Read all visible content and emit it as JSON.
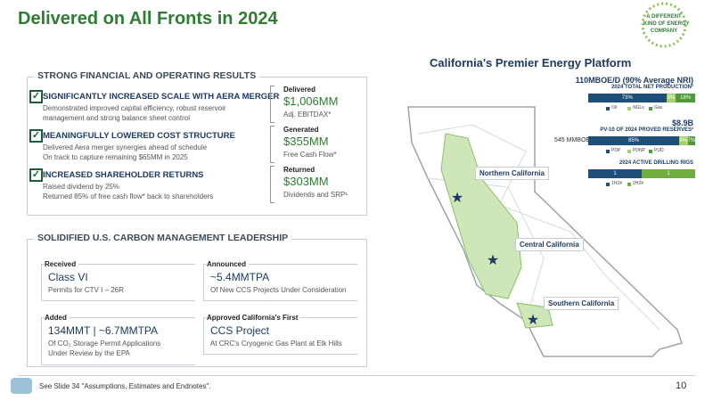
{
  "header": {
    "title": "Delivered on All Fronts in 2024",
    "logo": [
      "A DIFFERENT",
      "KIND OF ENERGY",
      "COMPANY"
    ]
  },
  "financial": {
    "heading": "STRONG FINANCIAL AND OPERATING RESULTS",
    "items": [
      {
        "title": "SIGNIFICANTLY INCREASED SCALE WITH AERA MERGER",
        "lines": [
          "Demonstrated improved capital efficiency, robust reservoir",
          "management and strong balance sheet control"
        ]
      },
      {
        "title": "MEANINGFULLY LOWERED COST STRUCTURE",
        "lines": [
          "Delivered Aera merger synergies ahead of schedule",
          "On track to capture remaining $65MM in 2025"
        ]
      },
      {
        "title": "INCREASED SHAREHOLDER RETURNS",
        "lines": [
          "Raised dividend by 25%",
          "Returned 85% of free cash flow* back to shareholders"
        ]
      }
    ],
    "metrics": [
      {
        "label": "Delivered",
        "value": "$1,006MM",
        "note": "Adj. EBITDAX*"
      },
      {
        "label": "Generated",
        "value": "$355MM",
        "note": "Free Cash Flow*"
      },
      {
        "label": "Returned",
        "value": "$303MM",
        "note": "Dividends and SRP¹"
      }
    ]
  },
  "carbon": {
    "heading": "SOLIDIFIED U.S. CARBON MANAGEMENT LEADERSHIP",
    "cards": [
      {
        "label": "Received",
        "value": "Class VI",
        "lines": [
          "Permits for CTV I – 26R"
        ]
      },
      {
        "label": "Announced",
        "value": "~5.4MMTPA",
        "lines": [
          "Of New CCS Projects Under Consideration"
        ]
      },
      {
        "label": "Added",
        "value": "134MMT | ~6.7MMTPA",
        "lines": [
          "Of CO₂ Storage Permit Applications",
          "Under Review by the EPA"
        ]
      },
      {
        "label": "Approved California's First",
        "value": "CCS Project",
        "lines": [
          "At CRC's Cryogenic Gas Plant at Elk Hills"
        ]
      }
    ]
  },
  "platform": {
    "title": "California's Premier Energy Platform",
    "charts": [
      {
        "headline": "110MBOE/D (90% Average NRI)",
        "caption": "2024 TOTAL NET PRODUCTION³",
        "segments": [
          {
            "name": "Oil",
            "value": 73,
            "value_label": "73%",
            "color": "#1f4e79"
          },
          {
            "name": "NGLs",
            "value": 9,
            "value_label": "9%",
            "color": "#a9cf6e"
          },
          {
            "name": "Gas",
            "value": 18,
            "value_label": "18%",
            "color": "#4f9a3a"
          }
        ]
      },
      {
        "headline": "$8.9B",
        "caption": "PV-10 OF 2024 PROVED RESERVES²",
        "side": "545 MMBOE",
        "segments": [
          {
            "name": "PDP",
            "value": 85,
            "value_label": "85%",
            "color": "#1f4e79"
          },
          {
            "name": "PDNP",
            "value": 8,
            "value_label": "8%",
            "color": "#a9cf6e"
          },
          {
            "name": "PUD",
            "value": 7,
            "value_label": "7%",
            "color": "#4f9a3a"
          }
        ]
      },
      {
        "caption": "2024 ACTIVE DRILLING RIGS",
        "segments": [
          {
            "name": "1H24",
            "value": 1,
            "value_label": "1",
            "color": "#1f4e79"
          },
          {
            "name": "2H24",
            "value": 1,
            "value_label": "1",
            "color": "#6fae3f"
          }
        ]
      }
    ],
    "regions": [
      "Northern California",
      "Central California",
      "Southern California"
    ]
  },
  "footer": {
    "note": "See Slide 34 \"Assumptions, Estimates and Endnotes\".",
    "page": "10"
  }
}
